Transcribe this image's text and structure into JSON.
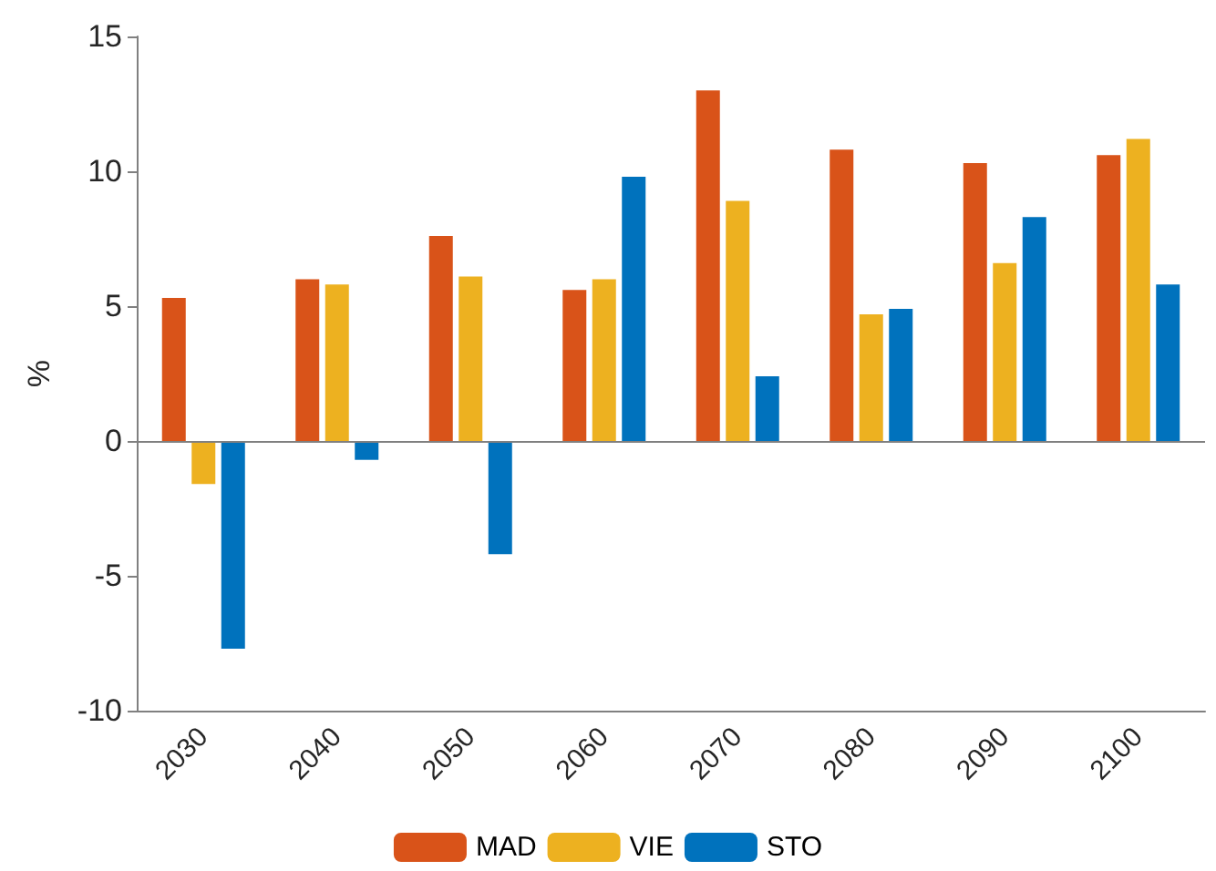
{
  "chart_data": {
    "type": "bar",
    "ylabel": "%",
    "categories": [
      "2030",
      "2040",
      "2050",
      "2060",
      "2070",
      "2080",
      "2090",
      "2100"
    ],
    "series": [
      {
        "name": "MAD",
        "color": "#d95319",
        "values": [
          5.3,
          6.0,
          7.6,
          5.6,
          13.0,
          10.8,
          10.3,
          10.6
        ]
      },
      {
        "name": "VIE",
        "color": "#edb120",
        "values": [
          -1.6,
          5.8,
          6.1,
          6.0,
          8.9,
          4.7,
          6.6,
          11.2
        ]
      },
      {
        "name": "STO",
        "color": "#0072bd",
        "values": [
          -7.7,
          -0.7,
          -4.2,
          9.8,
          2.4,
          4.9,
          8.3,
          5.8
        ]
      }
    ],
    "ylim": [
      -10,
      15
    ],
    "yticks": [
      -10,
      -5,
      0,
      5,
      10,
      15
    ],
    "ref_lines": [
      {
        "axis": "y",
        "value": 0,
        "color": "#808080"
      }
    ],
    "grid": false,
    "legend": "bottom"
  }
}
